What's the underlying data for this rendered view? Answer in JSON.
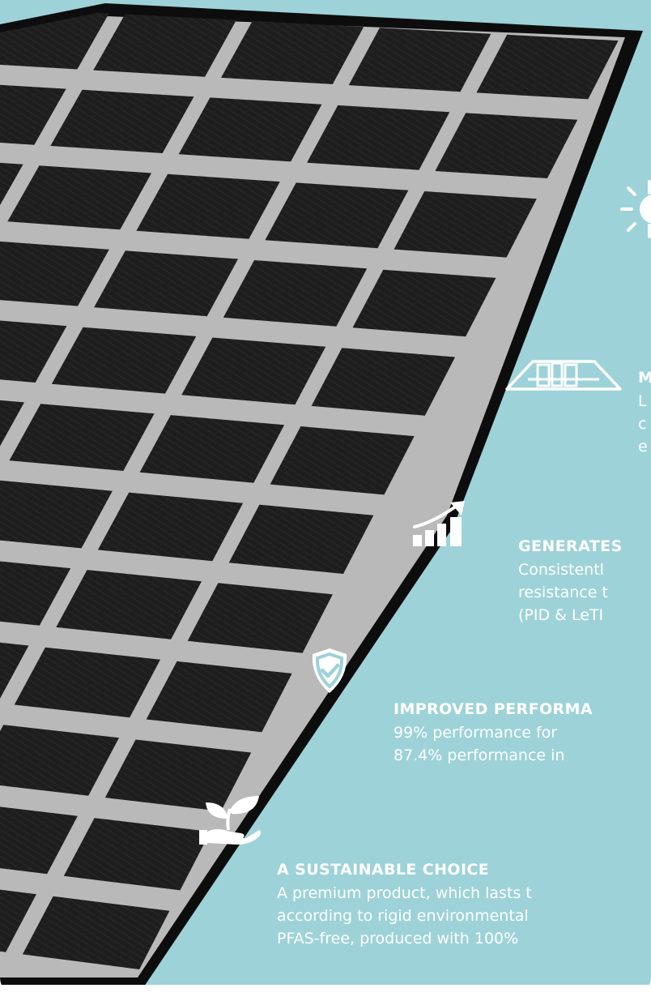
{
  "colors": {
    "background": "#9dd2d8",
    "panel_cell": "#1e1e1e",
    "panel_frame": "#0d0d0d",
    "panel_gap": "#b9b9b9",
    "text": "#ffffff"
  },
  "features": [
    {
      "icon": "sun-icon",
      "title": "",
      "lines": []
    },
    {
      "icon": "roof-panels-icon",
      "title": "M",
      "lines": [
        "L",
        "c",
        "e"
      ]
    },
    {
      "icon": "growth-chart-icon",
      "title": "GENERATES",
      "lines": [
        "Consistentl",
        "resistance t",
        "(PID & LeTI"
      ]
    },
    {
      "icon": "shield-check-icon",
      "title": "IMPROVED PERFORMA",
      "lines": [
        "99% performance for",
        "87.4% performance in"
      ]
    },
    {
      "icon": "plant-hand-icon",
      "title": "A SUSTAINABLE CHOICE",
      "lines": [
        "A premium product, which lasts t",
        "according to rigid environmental",
        "PFAS-free, produced with 100%"
      ]
    }
  ]
}
